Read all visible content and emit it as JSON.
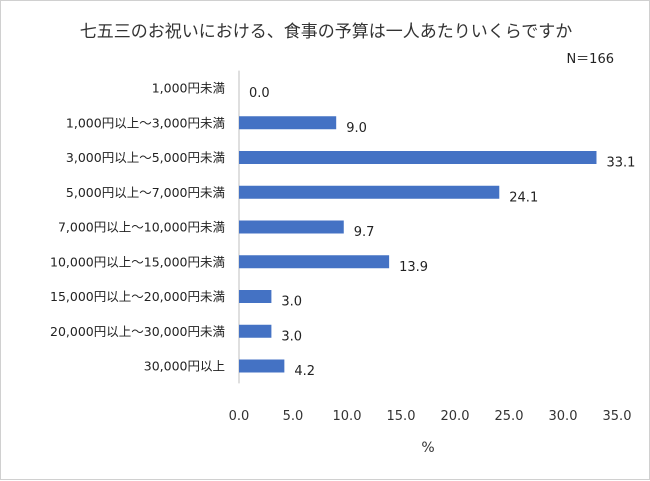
{
  "chart_data": {
    "type": "bar",
    "orientation": "horizontal",
    "title": "七五三のお祝いにおける、食事の予算は一人あたりいくらですか",
    "sample_note": "N＝166",
    "xlabel": "%",
    "categories": [
      "1,000円未満",
      "1,000円以上～3,000円未満",
      "3,000円以上～5,000円未満",
      "5,000円以上～7,000円未満",
      "7,000円以上～10,000円未満",
      "10,000円以上～15,000円未満",
      "15,000円以上～20,000円未満",
      "20,000円以上～30,000円未満",
      "30,000円以上"
    ],
    "values": [
      0.0,
      9.0,
      33.1,
      24.1,
      9.7,
      13.9,
      3.0,
      3.0,
      4.2
    ],
    "value_labels": [
      "0.0",
      "9.0",
      "33.1",
      "24.1",
      "9.7",
      "13.9",
      "3.0",
      "3.0",
      "4.2"
    ],
    "xlim": [
      0,
      35
    ],
    "x_ticks": [
      "0.0",
      "5.0",
      "10.0",
      "15.0",
      "20.0",
      "25.0",
      "30.0",
      "35.0"
    ],
    "bar_color": "#4472c4",
    "grid": false,
    "legend": "none"
  }
}
